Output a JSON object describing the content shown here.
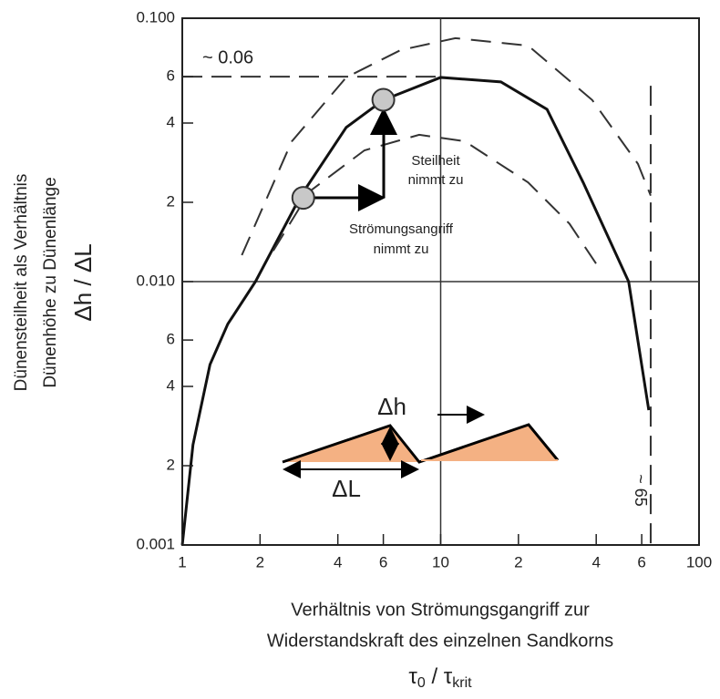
{
  "chart_data": {
    "type": "line",
    "x_label": [
      "Verhältnis von Strömungsgangriff zur",
      "Widerstandskraft des einzelnen Sandkorns"
    ],
    "x_symbol": [
      "τ",
      "0",
      " / τ",
      "krit"
    ],
    "y_label": [
      "Dünensteilheit als Verhältnis",
      "Dünenhöhe zu Dünenlänge",
      "Δh / ΔL"
    ],
    "xscale": "log",
    "yscale": "log",
    "xlim": [
      1,
      100
    ],
    "ylim": [
      0.001,
      0.1
    ],
    "xticks": [
      1,
      2,
      4,
      6,
      10,
      {
        "value": 20,
        "label": "2"
      },
      {
        "value": 40,
        "label": "4"
      },
      {
        "value": 60,
        "label": "6"
      },
      100
    ],
    "yticks": [
      0.001,
      {
        "value": 0.002,
        "label": "2"
      },
      {
        "value": 0.004,
        "label": "4"
      },
      {
        "value": 0.006,
        "label": "6"
      },
      {
        "value": 0.01,
        "label": "0.010"
      },
      {
        "value": 0.02,
        "label": "2"
      },
      {
        "value": 0.04,
        "label": "4"
      },
      {
        "value": 0.06,
        "label": "6"
      },
      {
        "value": 0.1,
        "label": "0.100"
      }
    ],
    "grid_lines": {
      "x": [
        10
      ],
      "y": [
        0.01
      ]
    },
    "series": [
      {
        "color": "#111111",
        "dashed": false,
        "width": 3,
        "x": [
          1,
          1.1,
          1.28,
          1.5,
          1.92,
          2.87,
          4.31,
          6,
          10,
          17.1,
          25.8,
          35.6,
          53.4,
          63.9
        ],
        "values": [
          0.001,
          0.0024,
          0.00484,
          0.0069,
          0.01,
          0.0211,
          0.0385,
          0.0489,
          0.0596,
          0.0573,
          0.0451,
          0.0238,
          0.01,
          0.00325
        ]
      },
      {
        "color": "#333333",
        "dashed": true,
        "width": 2,
        "x": [
          1.7,
          2.65,
          4.31,
          7.0,
          11.4,
          21.8,
          38.6,
          58,
          65
        ],
        "values": [
          0.0126,
          0.034,
          0.0596,
          0.0757,
          0.084,
          0.0787,
          0.0489,
          0.028,
          0.0212
        ]
      },
      {
        "color": "#333333",
        "dashed": true,
        "width": 2,
        "x": [
          2.25,
          3.11,
          5.07,
          8.26,
          12.4,
          21.8,
          31.5,
          40.2
        ],
        "values": [
          0.0131,
          0.022,
          0.0315,
          0.0361,
          0.0341,
          0.0238,
          0.0166,
          0.0116
        ]
      }
    ],
    "reference_lines": [
      {
        "axis": "y",
        "value": 0.06,
        "label": "~ 0.06"
      },
      {
        "axis": "x",
        "value": 65,
        "label": "~ 65"
      }
    ],
    "points": {
      "color": "#c8c8c8",
      "x": [
        2.94,
        6
      ],
      "values": [
        0.0208,
        0.049
      ]
    },
    "annotations": {
      "steepness": [
        "Steilheit",
        "nimmt zu"
      ],
      "attack": [
        "Strömungsangriff",
        "nimmt zu"
      ],
      "dune_height": "Δh",
      "dune_length": "ΔL"
    }
  }
}
